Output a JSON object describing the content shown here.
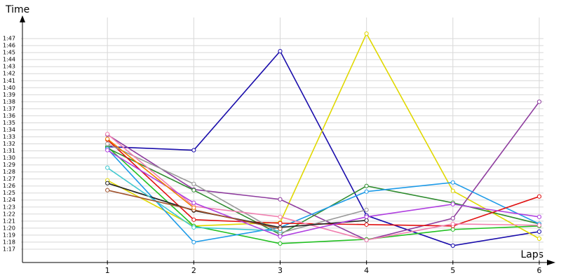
{
  "chart_data": {
    "type": "line",
    "y_label": "Time",
    "x_label": "Laps",
    "x": [
      1,
      2,
      3,
      4,
      5,
      6
    ],
    "xlim": [
      0,
      6.13
    ],
    "xticks": [
      1,
      2,
      3,
      4,
      5,
      6
    ],
    "ylim": [
      75.1,
      110.5
    ],
    "yticks": [
      {
        "value": 77,
        "label": "1:17"
      },
      {
        "value": 78,
        "label": "1:18"
      },
      {
        "value": 79,
        "label": "1:19"
      },
      {
        "value": 80,
        "label": "1:20"
      },
      {
        "value": 81,
        "label": "1:21"
      },
      {
        "value": 82,
        "label": "1:22"
      },
      {
        "value": 83,
        "label": "1:23"
      },
      {
        "value": 84,
        "label": "1:24"
      },
      {
        "value": 85,
        "label": "1:25"
      },
      {
        "value": 86,
        "label": "1:26"
      },
      {
        "value": 87,
        "label": "1:27"
      },
      {
        "value": 88,
        "label": "1:28"
      },
      {
        "value": 89,
        "label": "1:29"
      },
      {
        "value": 90,
        "label": "1:30"
      },
      {
        "value": 91,
        "label": "1:31"
      },
      {
        "value": 92,
        "label": "1:32"
      },
      {
        "value": 93,
        "label": "1:33"
      },
      {
        "value": 94,
        "label": "1:34"
      },
      {
        "value": 95,
        "label": "1:35"
      },
      {
        "value": 96,
        "label": "1:36"
      },
      {
        "value": 97,
        "label": "1:37"
      },
      {
        "value": 98,
        "label": "1:38"
      },
      {
        "value": 99,
        "label": "1:39"
      },
      {
        "value": 100,
        "label": "1:40"
      },
      {
        "value": 101,
        "label": "1:41"
      },
      {
        "value": 102,
        "label": "1:42"
      },
      {
        "value": 103,
        "label": "1:43"
      },
      {
        "value": 104,
        "label": "1:44"
      },
      {
        "value": 105,
        "label": "1:45"
      },
      {
        "value": 106,
        "label": "1:46"
      },
      {
        "value": 107,
        "label": "1:47"
      }
    ],
    "grid": true,
    "series": [
      {
        "color": "#1a0dab",
        "values": [
          91.6,
          91.1,
          105.2,
          81.8,
          77.5,
          79.5
        ]
      },
      {
        "color": "#e0d800",
        "values": [
          86.8,
          80.3,
          80.8,
          107.7,
          85.3,
          78.5
        ]
      },
      {
        "color": "#8e3c9e",
        "values": [
          93.3,
          85.5,
          84.1,
          78.3,
          81.4,
          98.0
        ]
      },
      {
        "color": "#22c022",
        "values": [
          91.6,
          80.3,
          77.8,
          78.4,
          79.8,
          80.3
        ]
      },
      {
        "color": "#2e8b2e",
        "values": [
          91.4,
          85.4,
          79.1,
          86.0,
          83.6,
          80.6
        ]
      },
      {
        "color": "#1e9be8",
        "values": [
          91.3,
          78.0,
          80.1,
          85.2,
          86.5,
          80.6
        ]
      },
      {
        "color": "#e01010",
        "values": [
          92.6,
          81.2,
          80.7,
          80.5,
          80.3,
          84.5
        ]
      },
      {
        "color": "#999999",
        "values": [
          92.0,
          86.3,
          79.3,
          82.6,
          null,
          null
        ]
      },
      {
        "color": "#f080b0",
        "values": [
          93.4,
          83.1,
          81.6,
          78.3,
          80.6,
          80.4
        ]
      },
      {
        "color": "#222222",
        "values": [
          86.4,
          82.5,
          80.1,
          81.1,
          null,
          null
        ]
      },
      {
        "color": "#40c8d0",
        "values": [
          88.6,
          80.1,
          79.6,
          null,
          null,
          null
        ]
      },
      {
        "color": "#b040e0",
        "values": [
          91.1,
          83.6,
          78.8,
          81.6,
          83.4,
          81.6
        ]
      },
      {
        "color": "#a0522d",
        "values": [
          85.4,
          82.6,
          79.9,
          null,
          null,
          null
        ]
      },
      {
        "color": "#f08000",
        "values": [
          92.7,
          82.9,
          null,
          null,
          null,
          null
        ]
      }
    ]
  }
}
